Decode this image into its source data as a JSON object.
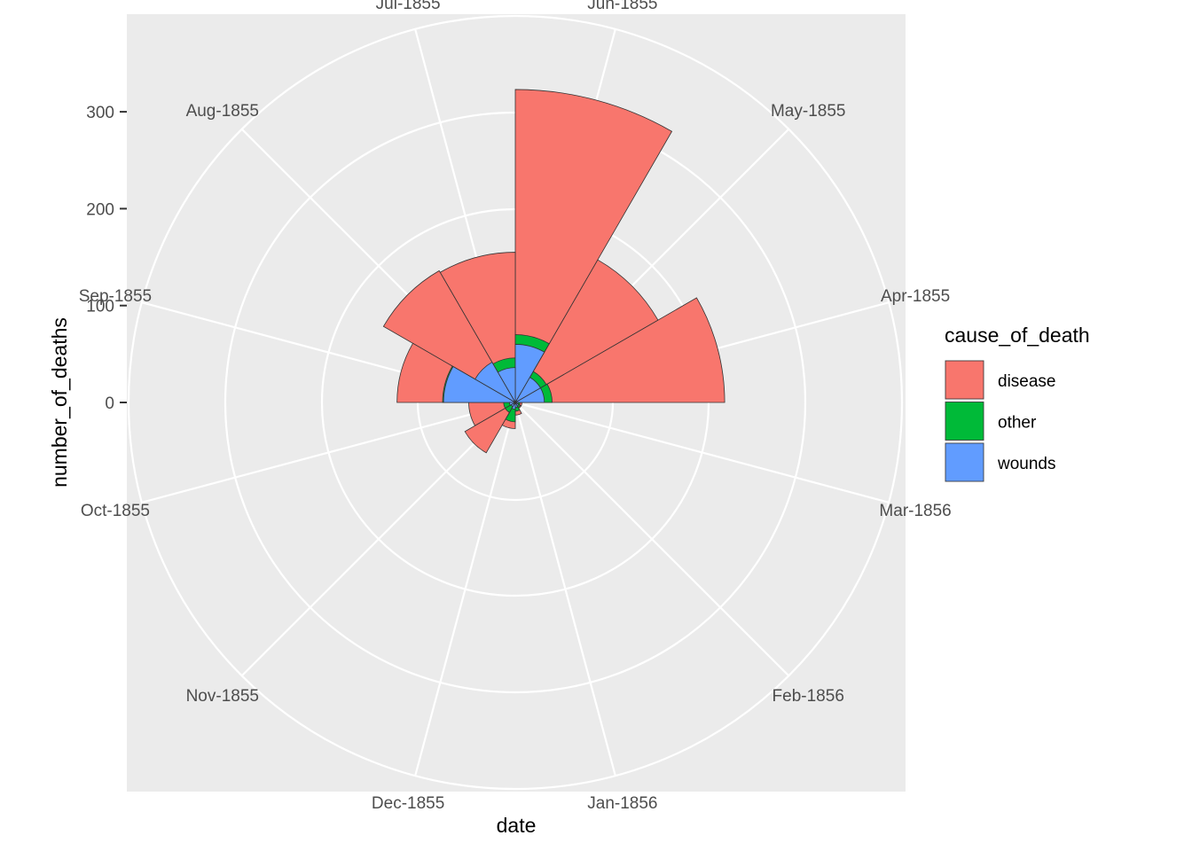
{
  "chart_data": {
    "type": "bar",
    "coord": "polar",
    "xlabel": "date",
    "ylabel": "number_of_deaths",
    "yticks": [
      0,
      100,
      200,
      300
    ],
    "categories": [
      "Apr-1855",
      "May-1855",
      "Jun-1855",
      "Jul-1855",
      "Aug-1855",
      "Sep-1855",
      "Oct-1855",
      "Nov-1855",
      "Dec-1855",
      "Jan-1856",
      "Feb-1856",
      "Mar-1856"
    ],
    "series": [
      {
        "name": "disease",
        "color": "#F8766D",
        "values": [
          216,
          170,
          323,
          155,
          157,
          122,
          48,
          60,
          27,
          13,
          7,
          7
        ]
      },
      {
        "name": "other",
        "color": "#00BA38",
        "values": [
          38,
          37,
          70,
          46,
          39,
          75,
          12,
          12,
          20,
          9,
          6,
          5
        ]
      },
      {
        "name": "wounds",
        "color": "#619CFF",
        "values": [
          30,
          30,
          60,
          36,
          48,
          74,
          6,
          5,
          7,
          5,
          4,
          3
        ]
      }
    ],
    "stacking": "overlapping",
    "grid": true,
    "legend": {
      "title": "cause_of_death",
      "position": "right",
      "entries": [
        "disease",
        "other",
        "wounds"
      ]
    }
  }
}
